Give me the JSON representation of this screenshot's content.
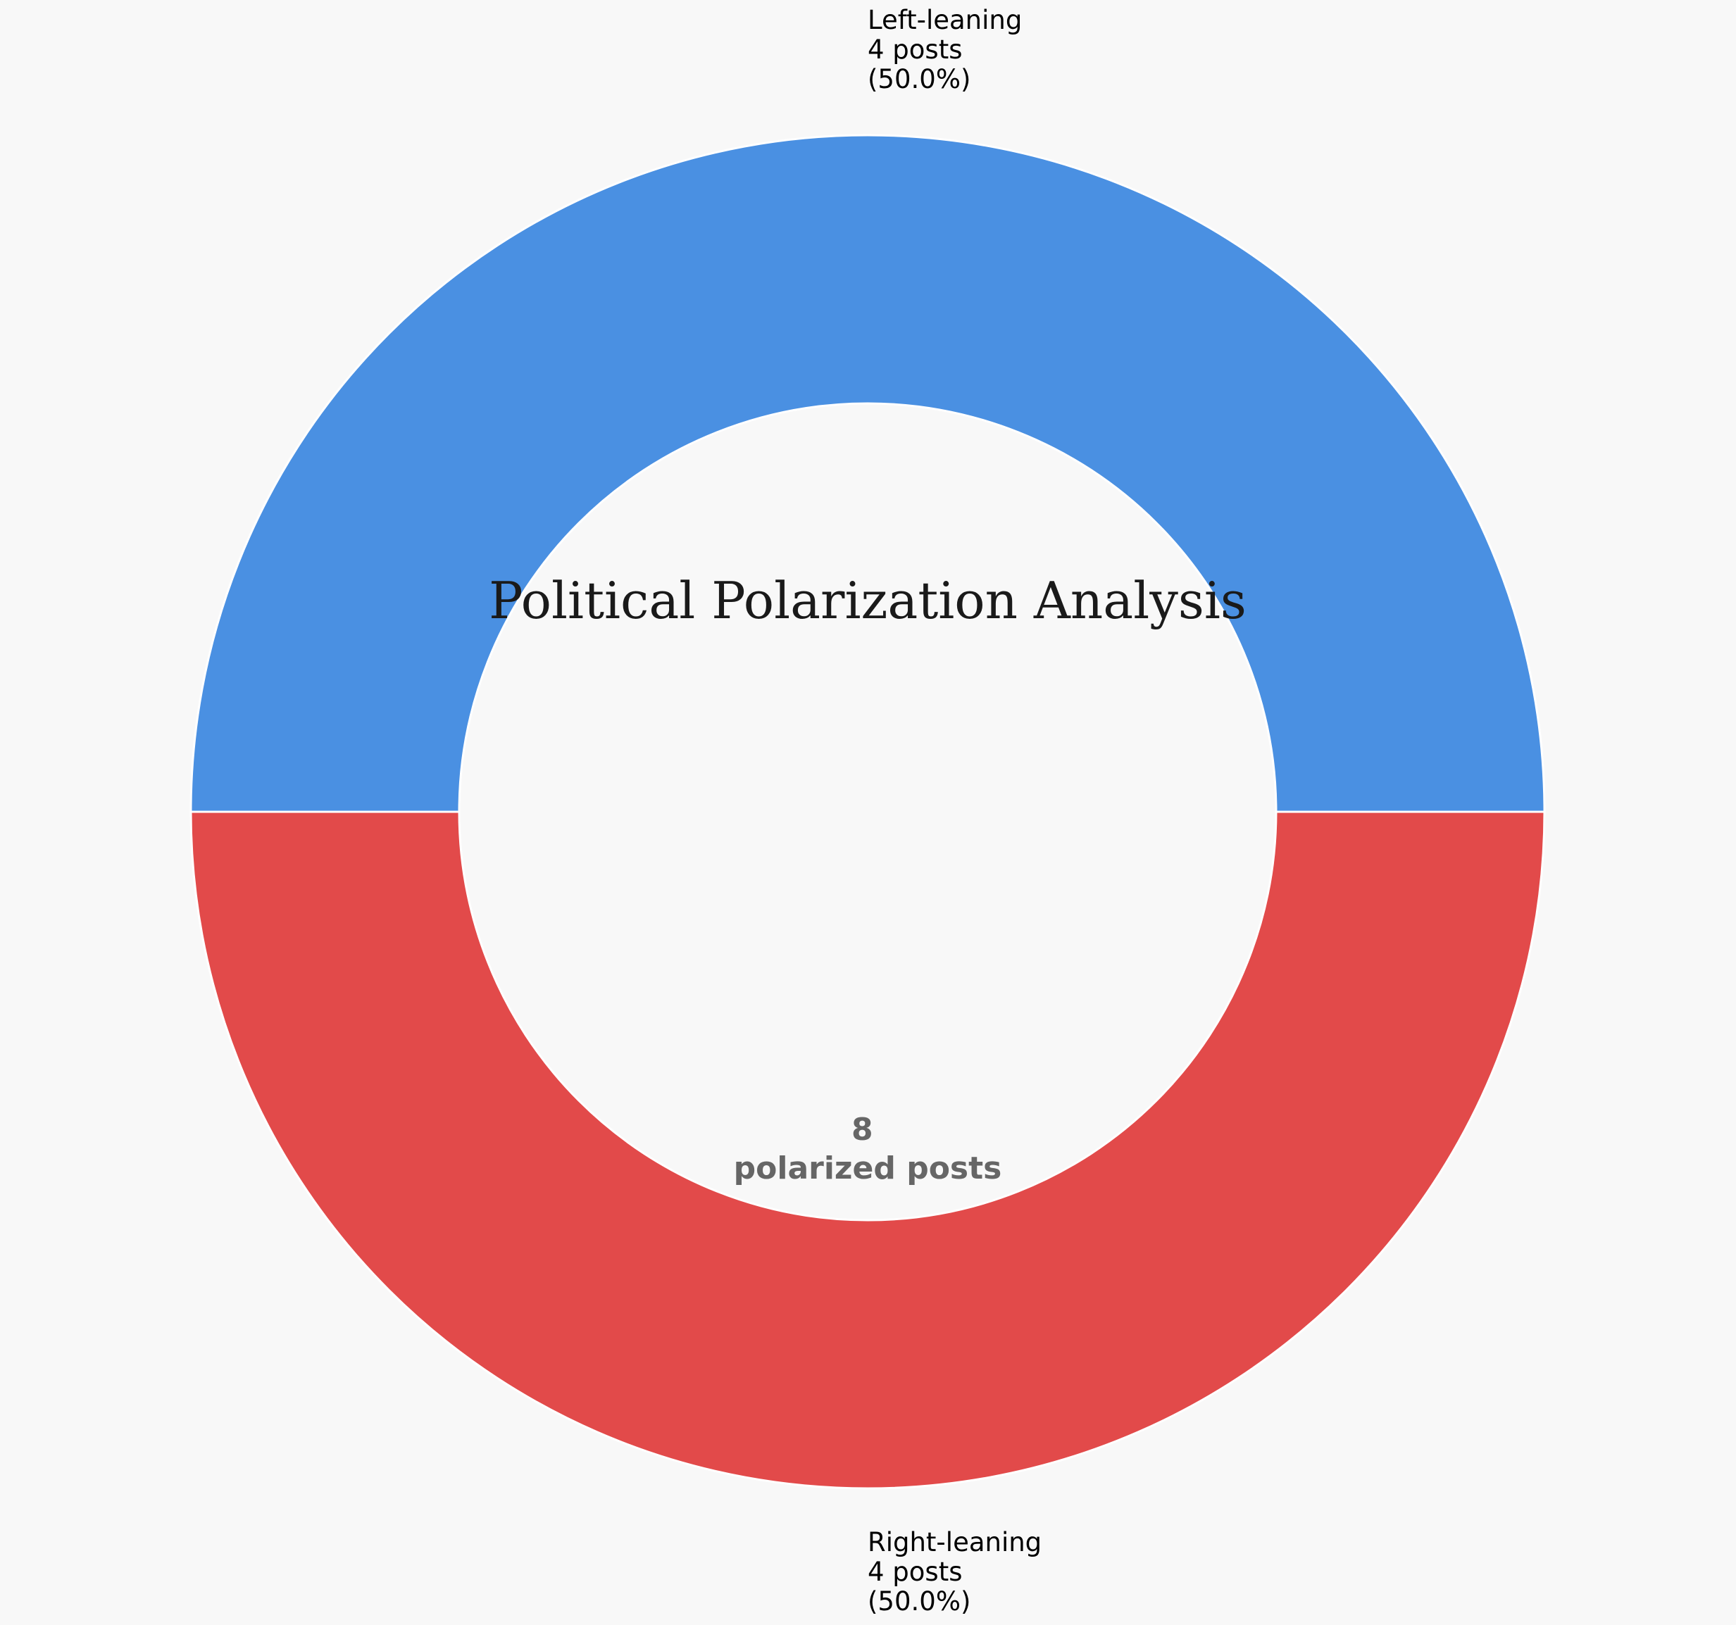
{
  "chart_data": {
    "type": "pie",
    "style": "donut",
    "title": "Political Polarization Analysis",
    "slices": [
      {
        "name": "Right-leaning",
        "value": 4,
        "percent": 50.0,
        "color": "#e24a4a",
        "label_lines": [
          "Right-leaning",
          "4 posts",
          "(50.0%)"
        ]
      },
      {
        "name": "Left-leaning",
        "value": 4,
        "percent": 50.0,
        "color": "#4a90e2",
        "label_lines": [
          "Left-leaning",
          "4 posts",
          "(50.0%)"
        ]
      }
    ],
    "center_label": {
      "count": "8",
      "text": "polarized posts"
    },
    "start_angle_deg": 180,
    "direction": "counterclockwise",
    "legend": "none"
  },
  "colors": {
    "background": "#f8f8f8",
    "slice_edge": "#ffffff",
    "center_text": "#666666",
    "title": "#1a1a1a"
  }
}
